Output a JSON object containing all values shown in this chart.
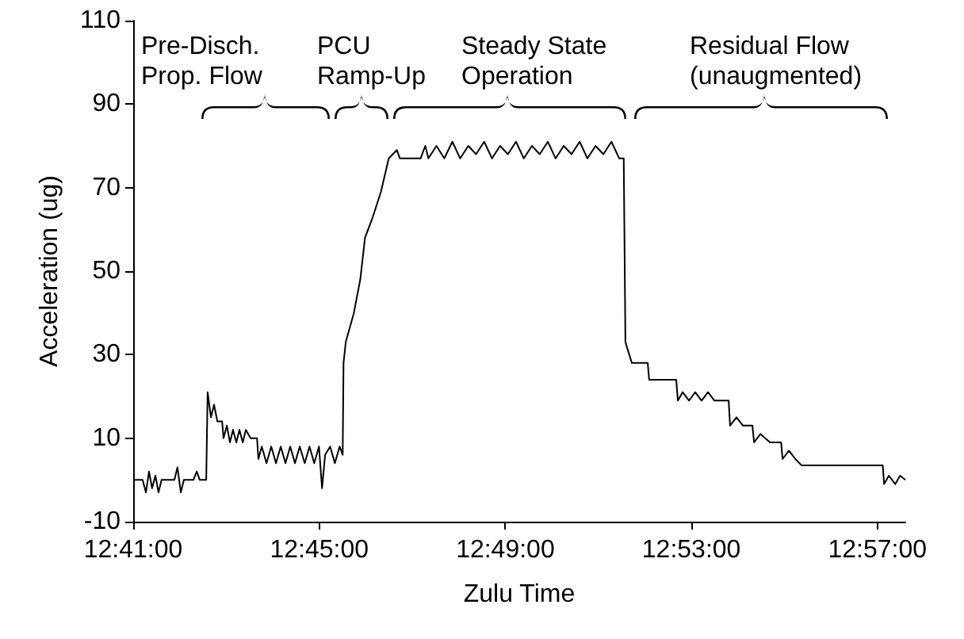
{
  "chart_data": {
    "type": "line",
    "xlabel": "Zulu Time",
    "ylabel": "Acceleration (ug)",
    "annotations": [
      "Pre-Disch.\nProp. Flow",
      "PCU\nRamp-Up",
      "Steady State\nOperation",
      "Residual Flow\n(unaugmented)"
    ],
    "xlim": [
      12.68333,
      12.96
    ],
    "xticks": [
      {
        "value": 12.68333,
        "label": "12:41:00"
      },
      {
        "value": 12.75,
        "label": "12:45:00"
      },
      {
        "value": 12.81667,
        "label": "12:49:00"
      },
      {
        "value": 12.88333,
        "label": "12:53:00"
      },
      {
        "value": 12.95,
        "label": "12:57:00"
      }
    ],
    "ylim": [
      -10,
      110
    ],
    "yticks": [
      -10,
      10,
      30,
      50,
      70,
      90,
      110
    ],
    "series": [
      {
        "color": "#000000",
        "x": [
          12.68333,
          12.6867,
          12.6879,
          12.689,
          12.6901,
          12.6913,
          12.6924,
          12.6935,
          12.6981,
          12.6992,
          12.7004,
          12.7015,
          12.7049,
          12.7061,
          12.7072,
          12.7095,
          12.71,
          12.7112,
          12.7123,
          12.7135,
          12.7152,
          12.7157,
          12.7169,
          12.718,
          12.7191,
          12.7203,
          12.7214,
          12.7226,
          12.7237,
          12.7254,
          12.7277,
          12.7282,
          12.7294,
          12.7311,
          12.7328,
          12.7345,
          12.7362,
          12.7379,
          12.7396,
          12.7413,
          12.743,
          12.7448,
          12.7465,
          12.7482,
          12.7499,
          12.751,
          12.7521,
          12.7539,
          12.7556,
          12.7573,
          12.7584,
          12.7587,
          12.7595,
          12.7624,
          12.7647,
          12.7664,
          12.7692,
          12.7721,
          12.7749,
          12.7778,
          12.7789,
          12.7863,
          12.788,
          12.7891,
          12.792,
          12.7948,
          12.7977,
          12.8005,
          12.8034,
          12.8062,
          12.8091,
          12.8119,
          12.8148,
          12.8176,
          12.8205,
          12.8233,
          12.8262,
          12.829,
          12.8319,
          12.8347,
          12.8376,
          12.8404,
          12.8433,
          12.8461,
          12.849,
          12.8518,
          12.8547,
          12.8575,
          12.8591,
          12.8597,
          12.862,
          12.8677,
          12.8682,
          12.8779,
          12.8785,
          12.8802,
          12.8825,
          12.8847,
          12.887,
          12.8893,
          12.8916,
          12.8967,
          12.8972,
          12.8995,
          12.9018,
          12.9052,
          12.9058,
          12.9081,
          12.9115,
          12.9155,
          12.916,
          12.9183,
          12.9206,
          12.9228,
          12.9519,
          12.9524,
          12.9541,
          12.9564,
          12.9581,
          12.96
        ],
        "values": [
          0,
          0,
          -3,
          2,
          -2,
          1,
          -3,
          0,
          0,
          3,
          -3,
          0,
          0,
          2,
          0,
          0,
          21,
          15,
          18,
          14,
          14,
          10,
          13,
          9,
          12,
          9,
          12,
          9,
          12,
          10,
          10,
          5,
          8,
          4,
          8,
          4,
          8,
          4,
          8,
          4,
          8,
          4,
          8,
          4,
          8,
          -2,
          6,
          8,
          4,
          8,
          6,
          28,
          33,
          40,
          48,
          58,
          63,
          69,
          77,
          79,
          77,
          77,
          80,
          77,
          80,
          77,
          81,
          77,
          80,
          78,
          81,
          77,
          80,
          78,
          81,
          77,
          80,
          78,
          81,
          77,
          80,
          78,
          81,
          77,
          80,
          78,
          81,
          77,
          77,
          33,
          28,
          28,
          24,
          24,
          19,
          21,
          19,
          21,
          19,
          21,
          19,
          19,
          13,
          15,
          13,
          13,
          9,
          11,
          9,
          9,
          5,
          7,
          5,
          3.5,
          3.5,
          -1,
          1,
          -1,
          1,
          0
        ]
      }
    ]
  }
}
